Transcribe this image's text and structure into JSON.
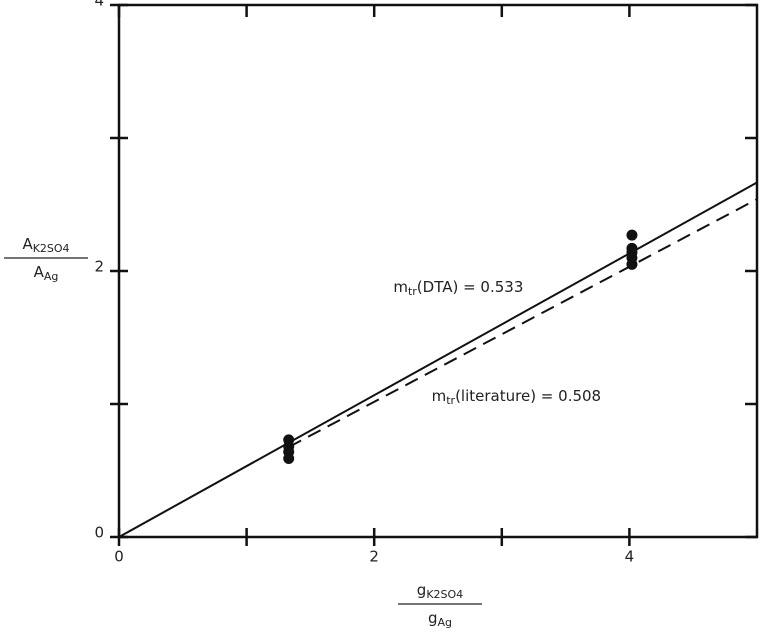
{
  "chart_data": {
    "type": "scatter",
    "xlim": [
      0,
      5
    ],
    "ylim": [
      0,
      4
    ],
    "xticks": [
      0,
      2,
      4
    ],
    "yticks": [
      0,
      2,
      4
    ],
    "xminorticks": [
      1,
      3
    ],
    "yminorticks": [
      1,
      3
    ],
    "xlabel": {
      "numerator": [
        "g",
        "K2SO4"
      ],
      "denominator": [
        "g",
        "Ag"
      ]
    },
    "ylabel": {
      "numerator": [
        "A",
        "K2SO4"
      ],
      "denominator": [
        "A",
        "Ag"
      ]
    },
    "points": {
      "color": "#111",
      "x": [
        1.33,
        1.33,
        1.33,
        1.33,
        4.02,
        4.02,
        4.02,
        4.02,
        4.02
      ],
      "values": [
        0.73,
        0.68,
        0.64,
        0.59,
        2.27,
        2.17,
        2.14,
        2.1,
        2.05
      ]
    },
    "lines": [
      {
        "style": "solid",
        "color": "#111",
        "x": [
          0,
          5
        ],
        "values": [
          0,
          2.665
        ]
      },
      {
        "style": "dashed",
        "color": "#111",
        "x": [
          1.33,
          5
        ],
        "values": [
          0.676,
          2.54
        ]
      }
    ],
    "annotations": [
      {
        "parts": [
          "m",
          "tr",
          "(DTA) = 0.533"
        ],
        "x": 2.15,
        "y": 1.88
      },
      {
        "parts": [
          "m",
          "tr",
          "(literature) = 0.508"
        ],
        "x": 2.45,
        "y": 1.06
      }
    ]
  }
}
